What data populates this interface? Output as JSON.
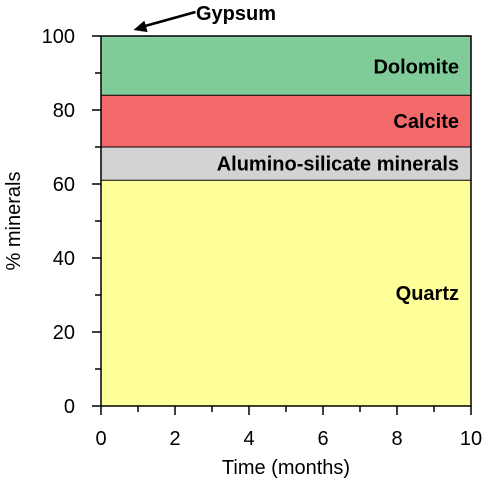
{
  "chart_data": {
    "type": "area",
    "title": "",
    "xlabel": "Time (months)",
    "ylabel": "% minerals",
    "xlim": [
      0,
      10
    ],
    "ylim": [
      0,
      100
    ],
    "x_ticks": [
      0,
      2,
      4,
      6,
      8,
      10
    ],
    "y_ticks": [
      0,
      20,
      40,
      60,
      80,
      100
    ],
    "grid": false,
    "stacked": true,
    "series": [
      {
        "name": "Quartz",
        "x": [
          0,
          10
        ],
        "values": [
          61,
          61
        ],
        "color": "#ffff99",
        "label_color": "#000000"
      },
      {
        "name": "Alumino-silicate minerals",
        "x": [
          0,
          10
        ],
        "values": [
          9,
          9
        ],
        "color": "#d3d3d3",
        "label_color": "#000000"
      },
      {
        "name": "Calcite",
        "x": [
          0,
          10
        ],
        "values": [
          14,
          14
        ],
        "color": "#f46a6a",
        "label_color": "#000000"
      },
      {
        "name": "Dolomite",
        "x": [
          0,
          10
        ],
        "values": [
          15.5,
          15.5
        ],
        "color": "#80cc99",
        "label_color": "#000000"
      },
      {
        "name": "Gypsum",
        "x": [
          0,
          10
        ],
        "values": [
          0.5,
          0.5
        ],
        "color": "#80cc99",
        "label_color": "#000000"
      }
    ],
    "annotations": [
      {
        "text": "Gypsum",
        "arrow_to": [
          0.5,
          100
        ]
      }
    ]
  }
}
